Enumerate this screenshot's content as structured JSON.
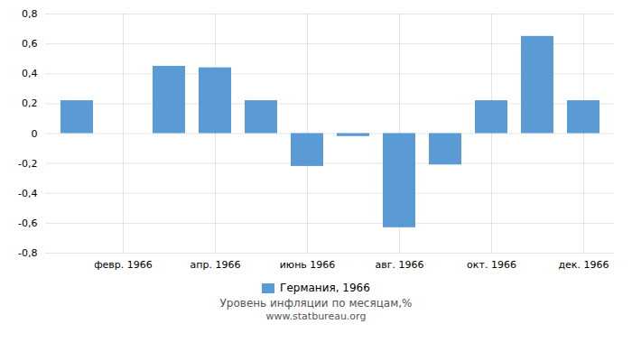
{
  "chart_data": {
    "type": "bar",
    "categories": [
      null,
      "февр. 1966",
      null,
      "апр. 1966",
      null,
      "июнь 1966",
      null,
      "авг. 1966",
      null,
      "окт. 1966",
      null,
      "дек. 1966"
    ],
    "series": [
      {
        "name": "Германия, 1966",
        "color": "#5B9BD5",
        "values": [
          0.22,
          0.0,
          0.45,
          0.44,
          0.22,
          -0.22,
          -0.02,
          -0.63,
          -0.21,
          0.22,
          0.65,
          0.22
        ]
      }
    ],
    "ylim": [
      -0.8,
      0.8
    ],
    "yticks": [
      {
        "value": -0.8,
        "label": "-0,8"
      },
      {
        "value": -0.6,
        "label": "-0,6"
      },
      {
        "value": -0.4,
        "label": "-0,4"
      },
      {
        "value": -0.2,
        "label": "-0,2"
      },
      0,
      {
        "value": 0.2,
        "label": "0,2"
      },
      {
        "value": 0.4,
        "label": "0,4"
      },
      {
        "value": 0.6,
        "label": "0,6"
      },
      {
        "value": 0.8,
        "label": "0,8"
      }
    ],
    "grid": true,
    "legend": "bottom",
    "annotations": [
      "Уровень инфляции по месяцам,%",
      "www.statbureau.org"
    ]
  }
}
